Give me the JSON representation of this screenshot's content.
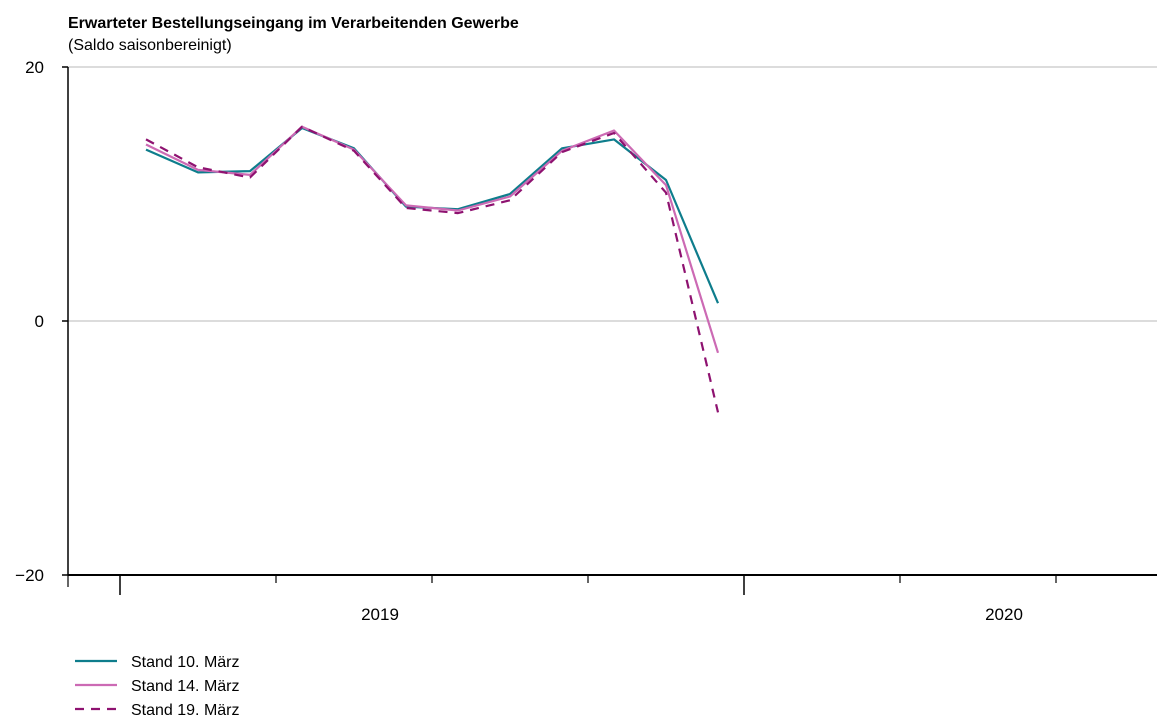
{
  "chart_data": {
    "type": "line",
    "title": "Erwarteter Bestellungseingang im Verarbeitenden Gewerbe",
    "subtitle": "(Saldo saisonbereinigt)",
    "ylim": [
      -20,
      20
    ],
    "y_ticks": [
      {
        "value": 20,
        "label": "20"
      },
      {
        "value": 0,
        "label": "0"
      },
      {
        "value": -20,
        "label": "−20"
      }
    ],
    "grid": "horizontal",
    "x_axis": {
      "start_month": "2018-12",
      "end_month": "2020-12",
      "year_labels": [
        {
          "label": "2019",
          "month": "2019-06"
        },
        {
          "label": "2020",
          "month": "2020-06"
        }
      ]
    },
    "legend_position": "bottom-left",
    "series": [
      {
        "name": "Stand 10. März",
        "color": "#0e7d8c",
        "dash": "solid",
        "x": [
          "2019-01",
          "2019-02",
          "2019-03",
          "2019-04",
          "2019-05",
          "2019-06",
          "2019-07",
          "2019-08",
          "2019-09",
          "2019-10",
          "2019-11",
          "2019-12"
        ],
        "values": [
          13.5,
          11.7,
          11.8,
          15.2,
          13.6,
          9.0,
          8.8,
          10.0,
          13.6,
          14.3,
          11.1,
          1.4
        ]
      },
      {
        "name": "Stand 14. März",
        "color": "#cc6ab4",
        "dash": "solid",
        "x": [
          "2019-01",
          "2019-02",
          "2019-03",
          "2019-04",
          "2019-05",
          "2019-06",
          "2019-07",
          "2019-08",
          "2019-09",
          "2019-10",
          "2019-11",
          "2019-12"
        ],
        "values": [
          13.9,
          11.9,
          11.5,
          15.3,
          13.5,
          9.1,
          8.7,
          9.8,
          13.4,
          15.0,
          10.7,
          -2.5
        ]
      },
      {
        "name": "Stand 19. März",
        "color": "#8e1270",
        "dash": "dashed",
        "x": [
          "2019-01",
          "2019-02",
          "2019-03",
          "2019-04",
          "2019-05",
          "2019-06",
          "2019-07",
          "2019-08",
          "2019-09",
          "2019-10",
          "2019-11",
          "2019-12"
        ],
        "values": [
          14.3,
          12.1,
          11.3,
          15.3,
          13.4,
          8.9,
          8.5,
          9.5,
          13.3,
          14.8,
          10.1,
          -7.2
        ]
      }
    ]
  }
}
